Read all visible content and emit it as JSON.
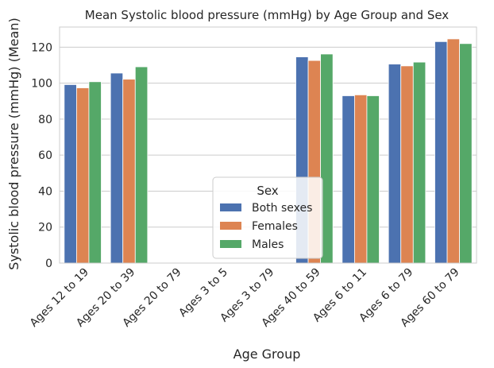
{
  "chart_data": {
    "type": "bar",
    "title": "Mean Systolic blood pressure (mmHg) by Age Group and Sex",
    "xlabel": "Age Group",
    "ylabel": "Systolic blood pressure (mmHg) (Mean)",
    "categories": [
      "Ages 12 to 19",
      "Ages 20 to 39",
      "Ages 20 to 79",
      "Ages 3 to 5",
      "Ages 3 to 79",
      "Ages 40 to 59",
      "Ages 6 to 11",
      "Ages 6 to 79",
      "Ages 60 to 79"
    ],
    "series": [
      {
        "name": "Both sexes",
        "color": "#4c72b0",
        "values": [
          99.2,
          105.6,
          null,
          null,
          null,
          114.6,
          93.0,
          110.6,
          123.1
        ]
      },
      {
        "name": "Females",
        "color": "#dd8452",
        "values": [
          97.4,
          102.2,
          null,
          null,
          null,
          112.6,
          93.5,
          109.6,
          124.6
        ]
      },
      {
        "name": "Males",
        "color": "#55a868",
        "values": [
          100.8,
          109.1,
          null,
          null,
          null,
          116.2,
          93.0,
          111.7,
          122.0
        ]
      }
    ],
    "yticks": [
      0,
      20,
      40,
      60,
      80,
      100,
      120
    ],
    "ylim": [
      0,
      131.2
    ],
    "grid": "horizontal",
    "legend_title": "Sex",
    "legend_placement": "lower-center"
  }
}
